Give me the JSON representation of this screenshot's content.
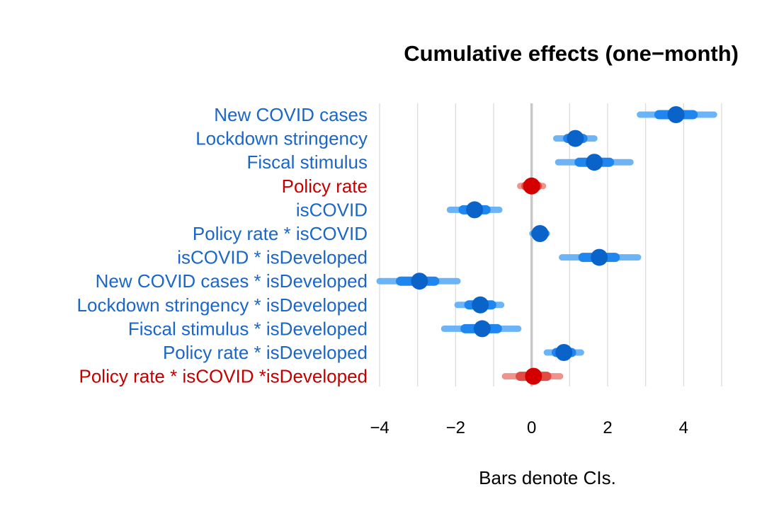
{
  "chart_data": {
    "type": "coefficient-plot",
    "title": "Cumulative effects (one−month)",
    "xlabel": "Bars denote CIs.",
    "xlim": [
      -4,
      5
    ],
    "xticks": [
      -4,
      -2,
      0,
      2,
      4
    ],
    "xtick_labels": [
      "−4",
      "−2",
      "0",
      "2",
      "4"
    ],
    "grid": "vertical",
    "colors": {
      "significant_point": "#0a63c9",
      "significant_inner_ci": "#1f86ef",
      "significant_outer_ci": "#6cb4f5",
      "significant_label": "#1a66c9",
      "insignificant_point": "#d40000",
      "insignificant_inner_ci": "#e24b43",
      "insignificant_outer_ci": "#ef938d",
      "insignificant_label": "#c40000",
      "zero_line": "#c8c8c8",
      "grid": "#d9d9d9"
    },
    "series": [
      {
        "label": "New COVID cases",
        "estimate": 3.8,
        "ci_inner": [
          3.35,
          4.25
        ],
        "ci_outer": [
          2.85,
          4.8
        ],
        "significant": true
      },
      {
        "label": "Lockdown stringency",
        "estimate": 1.15,
        "ci_inner": [
          0.95,
          1.35
        ],
        "ci_outer": [
          0.65,
          1.65
        ],
        "significant": true
      },
      {
        "label": "Fiscal stimulus",
        "estimate": 1.65,
        "ci_inner": [
          1.25,
          2.05
        ],
        "ci_outer": [
          0.7,
          2.6
        ],
        "significant": true
      },
      {
        "label": "Policy rate",
        "estimate": 0.0,
        "ci_inner": [
          -0.15,
          0.15
        ],
        "ci_outer": [
          -0.3,
          0.3
        ],
        "significant": false
      },
      {
        "label": "isCOVID",
        "estimate": -1.5,
        "ci_inner": [
          -1.8,
          -1.2
        ],
        "ci_outer": [
          -2.15,
          -0.85
        ],
        "significant": true
      },
      {
        "label": "Policy rate * isCOVID",
        "estimate": 0.22,
        "ci_inner": [
          0.1,
          0.34
        ],
        "ci_outer": [
          0.02,
          0.4
        ],
        "significant": true
      },
      {
        "label": "isCOVID * isDeveloped",
        "estimate": 1.78,
        "ci_inner": [
          1.35,
          2.2
        ],
        "ci_outer": [
          0.8,
          2.8
        ],
        "significant": true
      },
      {
        "label": "New COVID cases * isDeveloped",
        "estimate": -2.95,
        "ci_inner": [
          -3.45,
          -2.55
        ],
        "ci_outer": [
          -4.0,
          -1.95
        ],
        "significant": true
      },
      {
        "label": "Lockdown stringency * isDeveloped",
        "estimate": -1.35,
        "ci_inner": [
          -1.65,
          -1.05
        ],
        "ci_outer": [
          -1.95,
          -0.8
        ],
        "significant": true
      },
      {
        "label": "Fiscal stimulus * isDeveloped",
        "estimate": -1.3,
        "ci_inner": [
          -1.75,
          -0.9
        ],
        "ci_outer": [
          -2.3,
          -0.35
        ],
        "significant": true
      },
      {
        "label": "Policy rate * isDeveloped",
        "estimate": 0.85,
        "ci_inner": [
          0.65,
          1.05
        ],
        "ci_outer": [
          0.4,
          1.3
        ],
        "significant": true
      },
      {
        "label": "Policy rate * isCOVID *isDeveloped",
        "estimate": 0.05,
        "ci_inner": [
          -0.3,
          0.4
        ],
        "ci_outer": [
          -0.7,
          0.75
        ],
        "significant": false
      }
    ]
  }
}
